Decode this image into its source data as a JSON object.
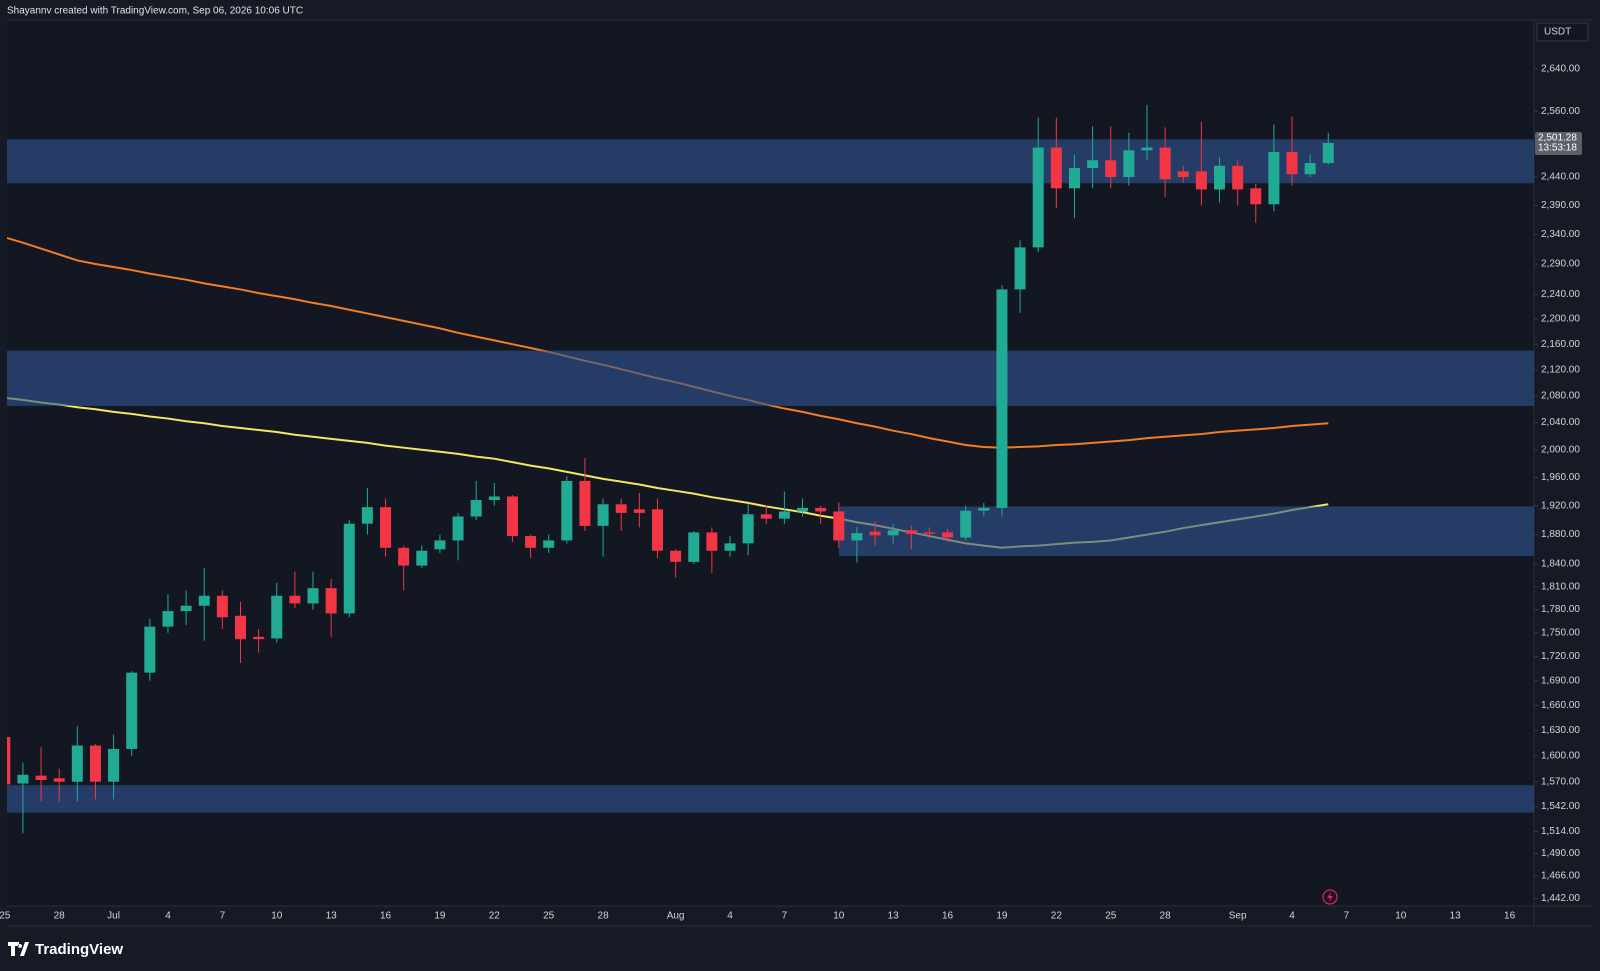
{
  "header": "Shayannv created with TradingView.com, Sep 06, 2026 10:06 UTC",
  "brand": "TradingView",
  "chart_data": {
    "type": "candlestick",
    "currency": "USDT",
    "log_scale": true,
    "grid": false,
    "up_color": "#22ab94",
    "down_color": "#f23645",
    "zone_color": "#30568f",
    "last_price": {
      "value": 2501.28,
      "label": "2,501.28"
    },
    "countdown": "13:53:18",
    "categories": [
      "25",
      null,
      null,
      "28",
      null,
      null,
      "Jul",
      null,
      null,
      "4",
      null,
      null,
      "7",
      null,
      null,
      "10",
      null,
      null,
      "13",
      null,
      null,
      "16",
      null,
      null,
      "19",
      null,
      null,
      "22",
      null,
      null,
      "25",
      null,
      null,
      "28",
      null,
      null,
      null,
      "Aug",
      null,
      null,
      "4",
      null,
      null,
      "7",
      null,
      null,
      "10",
      null,
      null,
      "13",
      null,
      null,
      "16",
      null,
      null,
      "19",
      null,
      null,
      "22",
      null,
      null,
      "25",
      null,
      null,
      "28",
      null,
      null,
      null,
      "Sep",
      null,
      null,
      "4",
      null,
      null,
      "7",
      null,
      null,
      "10",
      null,
      null,
      "13",
      null,
      null,
      "16"
    ],
    "open": [
      1622,
      1568,
      1577,
      1574,
      1570,
      1612,
      1570,
      1608,
      1700,
      1758,
      1778,
      1785,
      1798,
      1772,
      1745,
      1743,
      1798,
      1788,
      1808,
      1775,
      1895,
      1918,
      1862,
      1838,
      1860,
      1872,
      1905,
      1928,
      1933,
      1878,
      1862,
      1872,
      1955,
      1892,
      1922,
      1915,
      1915,
      1858,
      1843,
      1883,
      1858,
      1868,
      1908,
      1902,
      1912,
      1917,
      1912,
      1872,
      1884,
      1879,
      1886,
      1883,
      1883,
      1876,
      1913,
      1917,
      2248,
      2318,
      2493,
      2420,
      2456,
      2470,
      2440,
      2488,
      2493,
      2450,
      2450,
      2418,
      2460,
      2420,
      2392,
      2485,
      2445,
      2465,
      null,
      null,
      null,
      null,
      null,
      null,
      null,
      null,
      null,
      null
    ],
    "high": [
      1628,
      1592,
      1610,
      1585,
      1635,
      1614,
      1625,
      1702,
      1768,
      1800,
      1805,
      1835,
      1805,
      1790,
      1755,
      1815,
      1830,
      1830,
      1820,
      1900,
      1945,
      1930,
      1865,
      1865,
      1880,
      1910,
      1955,
      1952,
      1935,
      1880,
      1880,
      1962,
      1988,
      1930,
      1930,
      1938,
      1930,
      1860,
      1885,
      1890,
      1878,
      1922,
      1920,
      1940,
      1930,
      1920,
      1925,
      1890,
      1898,
      1895,
      1892,
      1890,
      1888,
      1920,
      1924,
      2255,
      2330,
      2548,
      2548,
      2480,
      2532,
      2532,
      2520,
      2572,
      2530,
      2460,
      2540,
      2475,
      2470,
      2428,
      2535,
      2550,
      2480,
      2520,
      null,
      null,
      null,
      null,
      null,
      null,
      null,
      null,
      null,
      null
    ],
    "low": [
      1560,
      1512,
      1548,
      1547,
      1548,
      1550,
      1550,
      1600,
      1690,
      1750,
      1760,
      1740,
      1755,
      1712,
      1725,
      1738,
      1782,
      1780,
      1745,
      1770,
      1880,
      1850,
      1805,
      1835,
      1855,
      1845,
      1900,
      1920,
      1870,
      1848,
      1855,
      1868,
      1885,
      1850,
      1885,
      1890,
      1848,
      1822,
      1840,
      1828,
      1850,
      1852,
      1895,
      1895,
      1905,
      1895,
      1862,
      1842,
      1865,
      1868,
      1860,
      1875,
      1870,
      1872,
      1905,
      1905,
      2210,
      2310,
      2385,
      2368,
      2420,
      2420,
      2425,
      2470,
      2405,
      2430,
      2390,
      2395,
      2390,
      2360,
      2380,
      2425,
      2440,
      2462,
      null,
      null,
      null,
      null,
      null,
      null,
      null,
      null,
      null,
      null
    ],
    "close": [
      1567,
      1578,
      1572,
      1570,
      1612,
      1570,
      1608,
      1700,
      1758,
      1778,
      1785,
      1798,
      1770,
      1742,
      1742,
      1798,
      1788,
      1808,
      1775,
      1895,
      1918,
      1862,
      1838,
      1858,
      1872,
      1905,
      1928,
      1933,
      1878,
      1862,
      1872,
      1955,
      1892,
      1922,
      1910,
      1910,
      1858,
      1843,
      1883,
      1858,
      1868,
      1908,
      1902,
      1912,
      1917,
      1912,
      1872,
      1882,
      1879,
      1886,
      1881,
      1881,
      1876,
      1913,
      1917,
      2248,
      2318,
      2493,
      2420,
      2456,
      2470,
      2440,
      2488,
      2493,
      2436,
      2440,
      2418,
      2460,
      2418,
      2392,
      2485,
      2445,
      2465,
      2501.28,
      null,
      null,
      null,
      null,
      null,
      null,
      null,
      null,
      null,
      null
    ],
    "moving_averages": [
      {
        "color": "#f57c20",
        "values": [
          2335,
          2326,
          2316,
          2306,
          2296,
          2290,
          2285,
          2280,
          2274,
          2269,
          2264,
          2258,
          2253,
          2248,
          2242,
          2237,
          2232,
          2226,
          2221,
          2215,
          2209,
          2203,
          2197,
          2191,
          2185,
          2178,
          2172,
          2166,
          2160,
          2154,
          2148,
          2141,
          2134,
          2128,
          2121,
          2114,
          2107,
          2101,
          2094,
          2087,
          2080,
          2074,
          2067,
          2061,
          2056,
          2050,
          2045,
          2039,
          2034,
          2028,
          2023,
          2017,
          2012,
          2007,
          2004,
          2003,
          2004,
          2005,
          2007,
          2008,
          2010,
          2012,
          2014,
          2017,
          2019,
          2021,
          2023,
          2026,
          2028,
          2030,
          2032,
          2035,
          2037,
          2039,
          null,
          null,
          null,
          null,
          null,
          null,
          null,
          null,
          null,
          null
        ]
      },
      {
        "color": "#f5e663",
        "values": [
          2077,
          2074,
          2070,
          2067,
          2063,
          2060,
          2056,
          2053,
          2049,
          2046,
          2042,
          2039,
          2035,
          2032,
          2029,
          2026,
          2022,
          2019,
          2016,
          2013,
          2010,
          2006,
          2003,
          2000,
          1997,
          1994,
          1990,
          1987,
          1982,
          1977,
          1973,
          1968,
          1963,
          1958,
          1954,
          1950,
          1945,
          1941,
          1937,
          1932,
          1928,
          1924,
          1919,
          1915,
          1911,
          1906,
          1902,
          1897,
          1893,
          1888,
          1883,
          1878,
          1873,
          1868,
          1865,
          1862,
          1864,
          1865,
          1867,
          1869,
          1870,
          1872,
          1876,
          1880,
          1884,
          1889,
          1893,
          1897,
          1901,
          1905,
          1909,
          1914,
          1918,
          1922,
          null,
          null,
          null,
          null,
          null,
          null,
          null,
          null,
          null,
          null
        ]
      }
    ],
    "zones": [
      {
        "range": [
          2508,
          2429
        ]
      },
      {
        "range": [
          2150,
          2065
        ]
      },
      {
        "range": [
          1919,
          1851
        ]
      },
      {
        "range": [
          1566,
          1535
        ]
      }
    ],
    "ylim": [
      1434,
      2736
    ],
    "yticks": [
      {
        "value": 2640,
        "label": "2,640.00"
      },
      {
        "value": 2560,
        "label": "2,560.00"
      },
      {
        "value": 2440,
        "label": "2,440.00"
      },
      {
        "value": 2390,
        "label": "2,390.00"
      },
      {
        "value": 2340,
        "label": "2,340.00"
      },
      {
        "value": 2290,
        "label": "2,290.00"
      },
      {
        "value": 2240,
        "label": "2,240.00"
      },
      {
        "value": 2200,
        "label": "2,200.00"
      },
      {
        "value": 2160,
        "label": "2,160.00"
      },
      {
        "value": 2120,
        "label": "2,120.00"
      },
      {
        "value": 2080,
        "label": "2,080.00"
      },
      {
        "value": 2040,
        "label": "2,040.00"
      },
      {
        "value": 2000,
        "label": "2,000.00"
      },
      {
        "value": 1960,
        "label": "1,960.00"
      },
      {
        "value": 1920,
        "label": "1,920.00"
      },
      {
        "value": 1880,
        "label": "1,880.00"
      },
      {
        "value": 1840,
        "label": "1,840.00"
      },
      {
        "value": 1810,
        "label": "1,810.00"
      },
      {
        "value": 1780,
        "label": "1,780.00"
      },
      {
        "value": 1750,
        "label": "1,750.00"
      },
      {
        "value": 1720,
        "label": "1,720.00"
      },
      {
        "value": 1690,
        "label": "1,690.00"
      },
      {
        "value": 1660,
        "label": "1,660.00"
      },
      {
        "value": 1630,
        "label": "1,630.00"
      },
      {
        "value": 1600,
        "label": "1,600.00"
      },
      {
        "value": 1570,
        "label": "1,570.00"
      },
      {
        "value": 1542,
        "label": "1,542.00"
      },
      {
        "value": 1514,
        "label": "1,514.00"
      },
      {
        "value": 1490,
        "label": "1,490.00"
      },
      {
        "value": 1466,
        "label": "1,466.00"
      },
      {
        "value": 1442,
        "label": "1,442.00"
      }
    ]
  }
}
